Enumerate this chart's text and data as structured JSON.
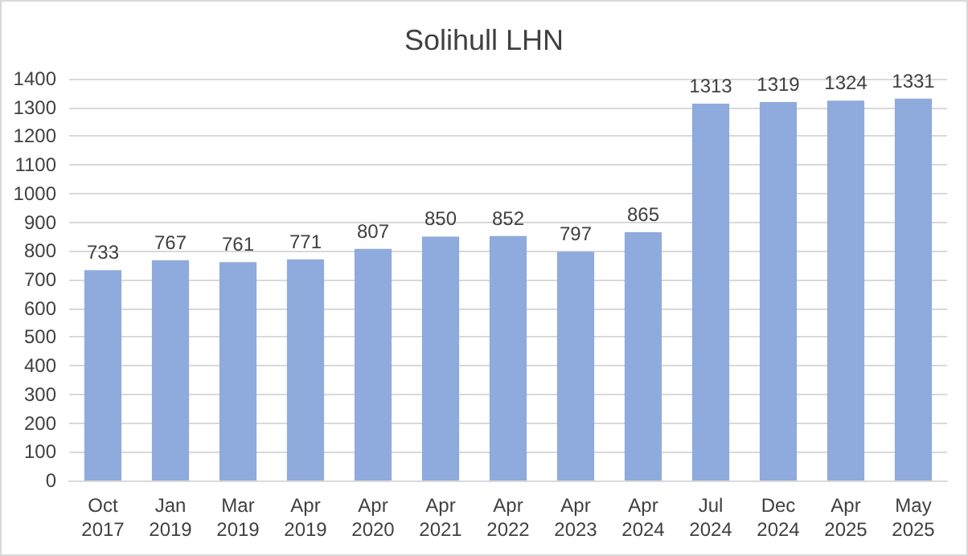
{
  "chart_data": {
    "type": "bar",
    "title": "Solihull LHN",
    "categories": [
      "Oct 2017",
      "Jan 2019",
      "Mar 2019",
      "Apr 2019",
      "Apr 2020",
      "Apr 2021",
      "Apr 2022",
      "Apr 2023",
      "Apr 2024",
      "Jul 2024",
      "Dec 2024",
      "Apr 2025",
      "May 2025"
    ],
    "values": [
      733,
      767,
      761,
      771,
      807,
      850,
      852,
      797,
      865,
      1313,
      1319,
      1324,
      1331
    ],
    "color": "#8faadc",
    "ylim": [
      0,
      1400
    ],
    "yticks": [
      0,
      100,
      200,
      300,
      400,
      500,
      600,
      700,
      800,
      900,
      1000,
      1100,
      1200,
      1300,
      1400
    ],
    "grid": "y",
    "data_labels": true
  }
}
